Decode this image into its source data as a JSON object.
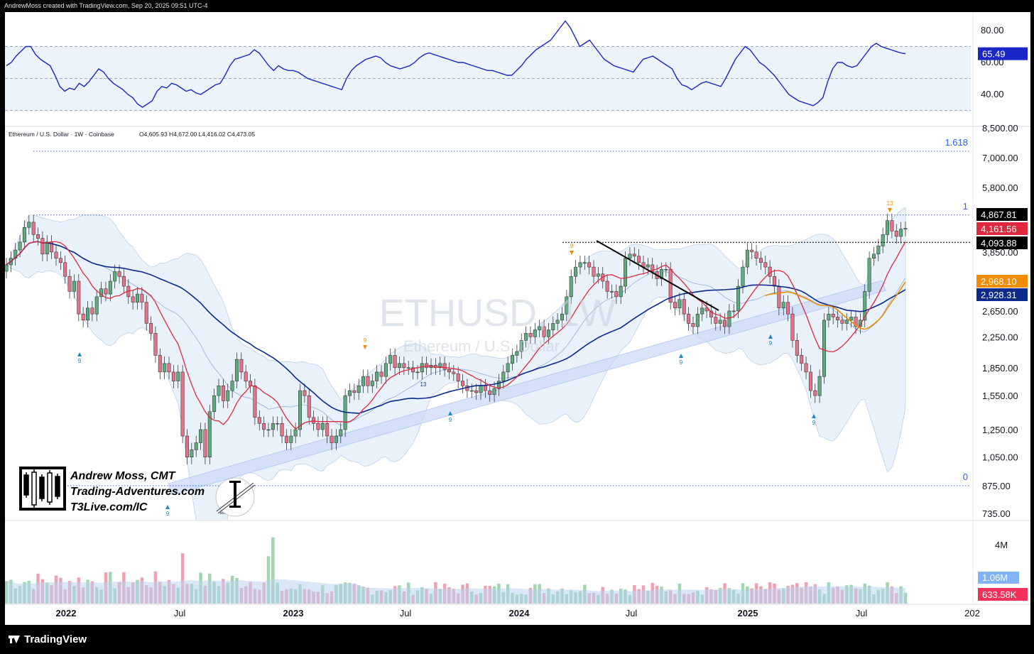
{
  "header": {
    "created_by": "AndrewMoss created with TradingView.com, Sep 20, 2025 09:51 UTC-4",
    "symbol_line": "Ethereum / U.S. Dollar · 1W · Coinbase",
    "ohlc": "O4,605.93  H4,672.00  L4,416.02  C4,473.05"
  },
  "watermark": {
    "symbol": "ETHUSD, 1W",
    "name": "Ethereum / U.S. Dollar"
  },
  "branding": {
    "author_line1": "Andrew Moss, CMT",
    "author_line2": "Trading-Adventures.com",
    "author_line3": "T3Live.com/IC",
    "inner_circle": "INNER CIRCLE"
  },
  "footer": {
    "logo_text": "TradingView"
  },
  "colors": {
    "up": "#5fab7e",
    "down": "#e6728a",
    "sma_fast": "#e0283e",
    "sma_slow": "#0b2a8c",
    "ema_orange": "#f08c00",
    "rsi": "#1a26c8",
    "band_fill": "#e6effa",
    "fib": "#2962ff"
  },
  "chart_data": {
    "type": "candlestick",
    "instrument": "Ethereum / U.S. Dollar",
    "interval": "1W",
    "exchange": "Coinbase",
    "scale": "log",
    "x_ticks": [
      "2022",
      "Jul",
      "2023",
      "Jul",
      "2024",
      "Jul",
      "2025",
      "Jul",
      "202"
    ],
    "price_ticks": [
      "8,500.00",
      "7,000.00",
      "5,800.00",
      "4,867.81",
      "4,161.56",
      "4,093.88",
      "3,850.00",
      "2,968.10",
      "2,928.31",
      "2,650.00",
      "2,250.00",
      "1,850.00",
      "1,550.00",
      "1,250.00",
      "1,050.00",
      "875.00",
      "735.00"
    ],
    "price_axis_values": [
      7000,
      5800,
      3850,
      2650,
      2250,
      1850,
      1550,
      1250,
      1050,
      875,
      735
    ],
    "price_axis_labels": [
      "7,000.00",
      "5,800.00",
      "3,850.00",
      "2,650.00",
      "2,250.00",
      "1,850.00",
      "1,550.00",
      "1,250.00",
      "1,050.00",
      "875.00",
      "735.00"
    ],
    "price_axis_cut_label": "8,500.00",
    "price_labels": [
      {
        "value": 4867.81,
        "text": "4,867.81",
        "color": "#000000"
      },
      {
        "value": 4161.56,
        "text": "4,161.56",
        "color": "#e0283e"
      },
      {
        "value": 4093.88,
        "text": "4,093.88",
        "color": "#000000"
      },
      {
        "value": 2968.1,
        "text": "2,968.10",
        "color": "#f08c00"
      },
      {
        "value": 2928.31,
        "text": "2,928.31",
        "color": "#0b2a8c"
      }
    ],
    "fib_levels": [
      {
        "label": "1.618",
        "value": 7180
      },
      {
        "label": "1",
        "value": 4867.81
      },
      {
        "label": "0",
        "value": 880
      }
    ],
    "horizontal_line": {
      "value": 4093.88
    },
    "ohlc_last": {
      "open": 4605.93,
      "high": 4672.0,
      "low": 4416.02,
      "close": 4473.05
    },
    "candles_approx_closes": [
      3550,
      3700,
      3900,
      4100,
      4500,
      4650,
      4300,
      4200,
      3800,
      4100,
      3850,
      3700,
      3600,
      3300,
      3000,
      3200,
      2600,
      2500,
      2700,
      2600,
      2900,
      3050,
      2950,
      3200,
      3400,
      3300,
      3100,
      2900,
      2800,
      2950,
      2800,
      2450,
      2300,
      2000,
      1800,
      1900,
      1800,
      1700,
      1800,
      1200,
      1050,
      1100,
      1150,
      1250,
      1050,
      1400,
      1550,
      1650,
      1500,
      1600,
      1700,
      1950,
      1800,
      1700,
      1650,
      1350,
      1300,
      1250,
      1250,
      1300,
      1300,
      1200,
      1150,
      1200,
      1250,
      1600,
      1550,
      1350,
      1300,
      1250,
      1300,
      1200,
      1150,
      1200,
      1250,
      1550,
      1600,
      1580,
      1650,
      1750,
      1650,
      1700,
      1800,
      1750,
      1900,
      2000,
      1850,
      1900,
      1850,
      1850,
      1800,
      1800,
      1900,
      1850,
      1880,
      1850,
      1900,
      1830,
      1800,
      1780,
      1700,
      1650,
      1600,
      1600,
      1580,
      1650,
      1600,
      1560,
      1620,
      1700,
      1800,
      1900,
      2000,
      2050,
      2200,
      2300,
      2250,
      2350,
      2400,
      2250,
      2350,
      2450,
      2500,
      2600,
      2900,
      3300,
      3500,
      3600,
      3600,
      3500,
      3300,
      3350,
      3200,
      3000,
      3000,
      2900,
      3100,
      3700,
      3800,
      3750,
      3600,
      3500,
      3550,
      3400,
      3250,
      3450,
      3450,
      2800,
      2700,
      2850,
      2600,
      2450,
      2400,
      2600,
      2700,
      2650,
      2550,
      2450,
      2500,
      2400,
      2650,
      2650,
      3100,
      3500,
      3900,
      3850,
      3700,
      3600,
      3500,
      3300,
      3100,
      2700,
      2800,
      2600,
      2200,
      2000,
      1900,
      1800,
      1600,
      1550,
      1750,
      2500,
      2600,
      2550,
      2500,
      2450,
      2500,
      2550,
      2400,
      2500,
      3000,
      3700,
      3800,
      4000,
      4300,
      4700,
      4400,
      4250,
      4450,
      4473
    ],
    "overlays": [
      "SMA (fast, red)",
      "SMA (slow, navy)",
      "EMA (orange)",
      "Bollinger Bands",
      "Rising channel"
    ],
    "td_labels": [
      "9",
      "9",
      "9",
      "9",
      "9",
      "9",
      "9",
      "9",
      "13"
    ],
    "rsi": {
      "ticks": [
        "80.00",
        "60.00",
        "40.00"
      ],
      "tick_values": [
        80,
        60,
        40
      ],
      "current": 65.49,
      "current_label": "65.49",
      "bands": [
        70,
        50,
        30
      ],
      "values": [
        58,
        60,
        64,
        67,
        70,
        70,
        65,
        62,
        60,
        58,
        52,
        45,
        42,
        44,
        43,
        47,
        45,
        48,
        52,
        56,
        54,
        50,
        47,
        45,
        43,
        40,
        38,
        34,
        32,
        34,
        36,
        42,
        45,
        44,
        47,
        46,
        44,
        42,
        43,
        41,
        40,
        42,
        44,
        46,
        47,
        52,
        58,
        62,
        63,
        64,
        65,
        68,
        66,
        62,
        58,
        55,
        58,
        56,
        55,
        55,
        54,
        52,
        50,
        49,
        48,
        47,
        46,
        45,
        44,
        43,
        50,
        55,
        58,
        60,
        62,
        63,
        64,
        63,
        60,
        58,
        57,
        56,
        57,
        58,
        60,
        63,
        65,
        66,
        65,
        64,
        63,
        62,
        61,
        60,
        60,
        59,
        58,
        57,
        56,
        55,
        55,
        54,
        53,
        52,
        52,
        55,
        58,
        62,
        65,
        68,
        70,
        72,
        74,
        78,
        82,
        86,
        82,
        76,
        70,
        72,
        74,
        70,
        66,
        62,
        60,
        58,
        57,
        56,
        55,
        54,
        58,
        62,
        63,
        64,
        62,
        60,
        58,
        56,
        50,
        46,
        45,
        43,
        45,
        47,
        48,
        47,
        46,
        45,
        50,
        56,
        62,
        66,
        70,
        68,
        64,
        60,
        58,
        55,
        52,
        48,
        44,
        40,
        38,
        36,
        35,
        34,
        33,
        35,
        38,
        48,
        56,
        60,
        60,
        58,
        57,
        58,
        62,
        66,
        70,
        72,
        70,
        69,
        68,
        67,
        66,
        65.49
      ]
    },
    "volume": {
      "ticks": [
        "4M"
      ],
      "tick_values": [
        4000000
      ],
      "last_label": "633.58K",
      "avg_label": "1.06M",
      "last_value": 633580,
      "avg_value": 1060000
    }
  }
}
